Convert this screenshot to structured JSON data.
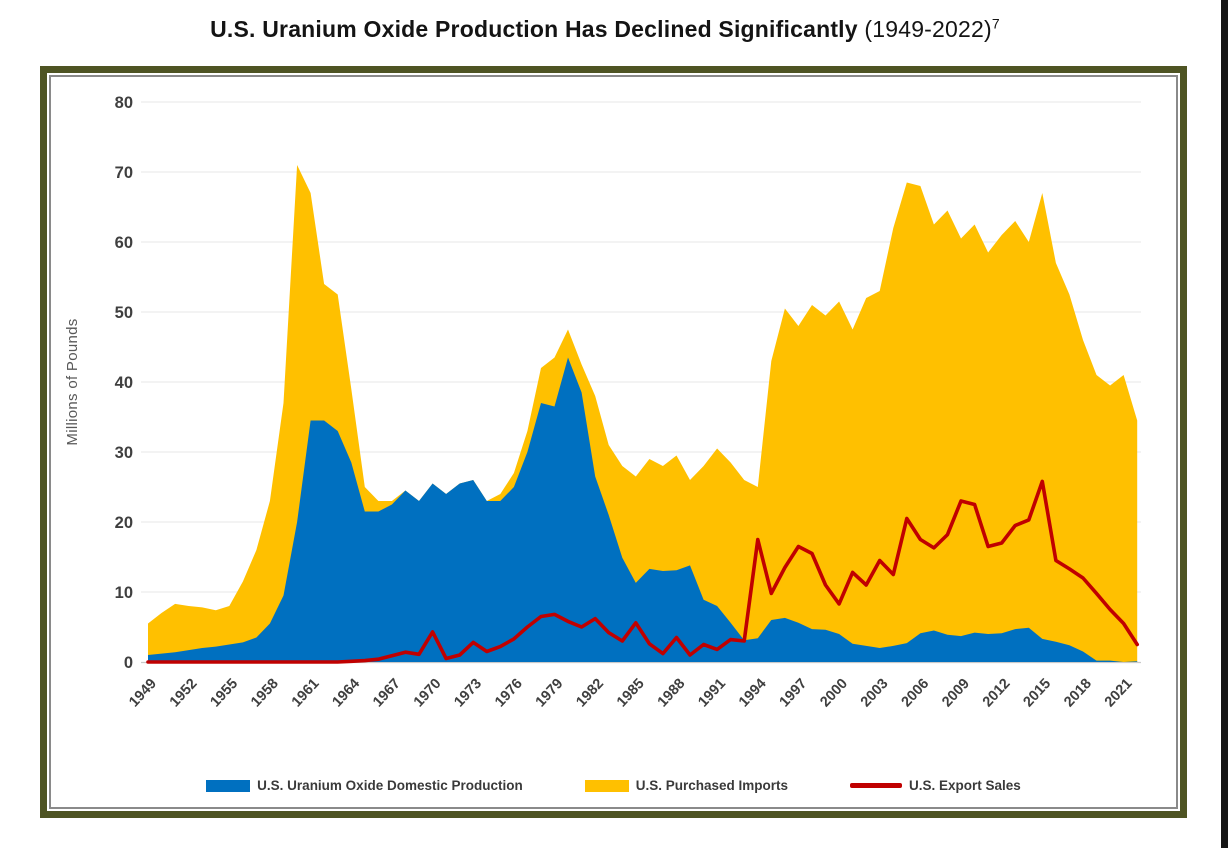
{
  "title": {
    "main": "U.S. Uranium Oxide Production Has Declined Significantly",
    "range": " (1949-2022)",
    "footnote": "7"
  },
  "page": {
    "frame_color": "#4e5423",
    "inner_border_color": "#8a8a8a",
    "edge_strip_color": "#151515"
  },
  "chart_data": {
    "type": "area",
    "stacked": true,
    "title": "U.S. Uranium Oxide Production Has Declined Significantly (1949-2022)",
    "xlabel": "",
    "ylabel": "Millions of Pounds",
    "ylim": [
      0,
      80
    ],
    "grid": "horizontal",
    "legend_position": "bottom",
    "y_ticks": [
      0,
      10,
      20,
      30,
      40,
      50,
      60,
      70,
      80
    ],
    "x_ticks": [
      1949,
      1952,
      1955,
      1958,
      1961,
      1964,
      1967,
      1970,
      1973,
      1976,
      1979,
      1982,
      1985,
      1988,
      1991,
      1994,
      1997,
      2000,
      2003,
      2006,
      2009,
      2012,
      2015,
      2018,
      2021
    ],
    "years": [
      1949,
      1950,
      1951,
      1952,
      1953,
      1954,
      1955,
      1956,
      1957,
      1958,
      1959,
      1960,
      1961,
      1962,
      1963,
      1964,
      1965,
      1966,
      1967,
      1968,
      1969,
      1970,
      1971,
      1972,
      1973,
      1974,
      1975,
      1976,
      1977,
      1978,
      1979,
      1980,
      1981,
      1982,
      1983,
      1984,
      1985,
      1986,
      1987,
      1988,
      1989,
      1990,
      1991,
      1992,
      1993,
      1994,
      1995,
      1996,
      1997,
      1998,
      1999,
      2000,
      2001,
      2002,
      2003,
      2004,
      2005,
      2006,
      2007,
      2008,
      2009,
      2010,
      2011,
      2012,
      2013,
      2014,
      2015,
      2016,
      2017,
      2018,
      2019,
      2020,
      2021,
      2022
    ],
    "series": [
      {
        "name": "U.S. Uranium Oxide Domestic Production",
        "type": "area",
        "color": "#0070C0",
        "values": [
          1.0,
          1.2,
          1.4,
          1.7,
          2.0,
          2.2,
          2.5,
          2.8,
          3.5,
          5.5,
          9.5,
          20.0,
          34.5,
          34.5,
          33.0,
          28.5,
          21.5,
          21.5,
          22.5,
          24.5,
          23.0,
          25.5,
          24.0,
          25.5,
          26.0,
          23.0,
          23.0,
          25.0,
          30.0,
          37.0,
          36.5,
          43.5,
          38.5,
          26.5,
          21.0,
          14.9,
          11.3,
          13.3,
          13.0,
          13.1,
          13.8,
          8.9,
          8.0,
          5.6,
          3.1,
          3.4,
          6.0,
          6.3,
          5.6,
          4.7,
          4.6,
          4.0,
          2.6,
          2.3,
          2.0,
          2.3,
          2.7,
          4.1,
          4.5,
          3.9,
          3.7,
          4.2,
          4.0,
          4.1,
          4.7,
          4.9,
          3.3,
          2.9,
          2.4,
          1.5,
          0.2,
          0.2,
          0.0,
          0.1
        ]
      },
      {
        "name": "U.S. Purchased Imports",
        "type": "area-stacked-on-previous",
        "color": "#FFC000",
        "values": [
          4.5,
          5.8,
          6.9,
          6.3,
          5.8,
          5.2,
          5.5,
          8.7,
          12.5,
          17.5,
          27.5,
          51.0,
          32.5,
          19.5,
          19.5,
          10.5,
          3.5,
          1.5,
          0.5,
          0,
          0,
          0,
          0,
          0,
          0,
          0,
          1.0,
          2.0,
          3.0,
          5.0,
          7.0,
          4.0,
          4.0,
          11.5,
          10.0,
          13.1,
          15.2,
          15.7,
          15.0,
          16.4,
          12.2,
          19.1,
          22.5,
          22.9,
          22.9,
          21.6,
          37.0,
          44.2,
          42.4,
          46.3,
          44.9,
          47.5,
          44.9,
          49.7,
          51.0,
          59.7,
          65.8,
          63.9,
          58.0,
          60.6,
          56.8,
          58.3,
          54.5,
          56.9,
          58.3,
          55.1,
          63.7,
          54.1,
          50.1,
          44.5,
          40.8,
          39.3,
          41.0,
          34.4
        ]
      },
      {
        "name": "U.S. Export Sales",
        "type": "line",
        "color": "#C00000",
        "values": [
          0,
          0,
          0,
          0,
          0,
          0,
          0,
          0,
          0,
          0,
          0,
          0,
          0,
          0,
          0,
          0.1,
          0.2,
          0.4,
          0.9,
          1.4,
          1.1,
          4.3,
          0.5,
          1.0,
          2.8,
          1.5,
          2.2,
          3.3,
          5.0,
          6.5,
          6.8,
          5.8,
          5.0,
          6.2,
          4.2,
          3.0,
          5.6,
          2.6,
          1.2,
          3.5,
          1.0,
          2.5,
          1.8,
          3.2,
          3.0,
          17.5,
          9.8,
          13.5,
          16.5,
          15.5,
          11.0,
          8.3,
          12.8,
          11.0,
          14.5,
          12.5,
          20.5,
          17.5,
          16.3,
          18.2,
          23.0,
          22.5,
          16.5,
          17.0,
          19.5,
          20.3,
          25.8,
          14.5,
          13.3,
          12.0,
          9.8,
          7.5,
          5.5,
          2.5
        ]
      }
    ]
  }
}
